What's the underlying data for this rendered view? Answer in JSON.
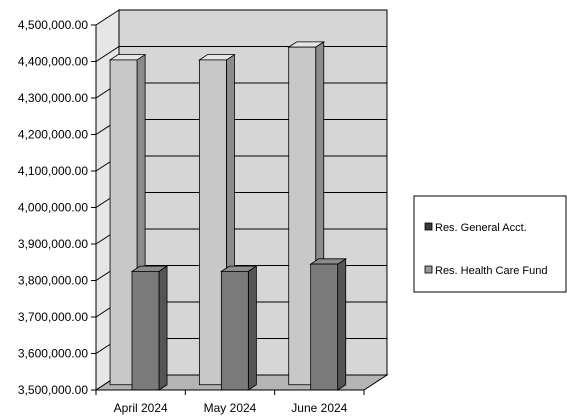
{
  "chart_data": {
    "type": "bar",
    "title": "",
    "xlabel": "",
    "ylabel": "",
    "categories": [
      "April 2024",
      "May 2024",
      "June 2024"
    ],
    "series": [
      {
        "name": "Res. General Acct.",
        "values": [
          4390000,
          4390000,
          4425000
        ],
        "color": "#c8c8c8"
      },
      {
        "name": "Res. Health Care Fund",
        "values": [
          3825000,
          3825000,
          3845000
        ],
        "color": "#7a7a7a"
      }
    ],
    "ylim": [
      3500000,
      4500000
    ],
    "yticks": [
      "3,500,000.00",
      "3,600,000.00",
      "3,700,000.00",
      "3,800,000.00",
      "3,900,000.00",
      "4,000,000.00",
      "4,100,000.00",
      "4,200,000.00",
      "4,300,000.00",
      "4,400,000.00",
      "4,500,000.00"
    ],
    "grid": true,
    "style": "3d-column",
    "legend_position": "right",
    "colors": {
      "wall": "#d6d6d6",
      "floor": "#b4b4b4",
      "grid": "#000000"
    }
  }
}
